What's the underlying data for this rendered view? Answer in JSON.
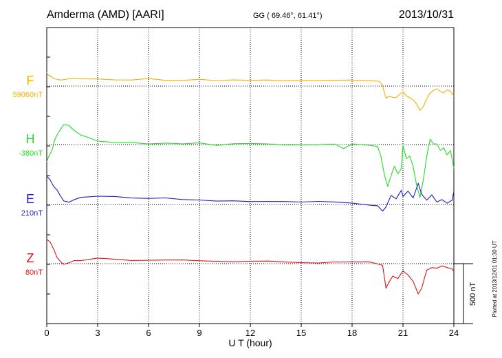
{
  "header": {
    "station": "Amderma (AMD)  [AARI]",
    "coords": "GG ( 69.46°,  61.41°)",
    "date": "2013/10/31"
  },
  "footer": {
    "plotted_note": "Plotted at 2013/12/01 01:30 UT"
  },
  "chart_data": {
    "type": "line",
    "xlabel": "U T (hour)",
    "xlim": [
      0,
      24
    ],
    "xticks": [
      "0",
      "3",
      "6",
      "9",
      "12",
      "15",
      "18",
      "21",
      "24"
    ],
    "grid": true,
    "scale_bar": {
      "label": "500 nT",
      "value": 500
    },
    "series": [
      {
        "name": "F",
        "baseline": "59060nT",
        "color": "#f5b000",
        "x": [
          0,
          0.1,
          0.2,
          0.4,
          0.6,
          0.8,
          1.0,
          1.5,
          2.0,
          3.0,
          4.0,
          5.0,
          6.0,
          7.0,
          8.0,
          9.0,
          10.0,
          11.0,
          12.0,
          13.0,
          14.0,
          15.0,
          16.0,
          17.0,
          18.0,
          19.0,
          19.6,
          19.8,
          19.9,
          20.0,
          20.2,
          20.4,
          20.6,
          20.8,
          21.0,
          21.2,
          21.4,
          21.6,
          21.8,
          22.0,
          22.2,
          22.4,
          22.6,
          22.8,
          23.0,
          23.2,
          23.4,
          23.6,
          23.8,
          24.0
        ],
        "y": [
          105,
          95,
          80,
          65,
          55,
          50,
          55,
          60,
          58,
          60,
          58,
          55,
          58,
          55,
          52,
          55,
          52,
          50,
          50,
          48,
          46,
          48,
          48,
          47,
          45,
          42,
          40,
          0,
          -60,
          -100,
          -80,
          -90,
          -100,
          -70,
          -50,
          -80,
          -90,
          -110,
          -150,
          -200,
          -170,
          -100,
          -60,
          -40,
          -20,
          -40,
          -60,
          -30,
          -50,
          -90
        ]
      },
      {
        "name": "H",
        "baseline": "-380nT",
        "color": "#22dd22",
        "x": [
          0,
          0.1,
          0.3,
          0.5,
          0.7,
          0.9,
          1.0,
          1.3,
          1.6,
          2.0,
          2.5,
          3.0,
          4.0,
          5.0,
          6.0,
          7.0,
          8.0,
          9.0,
          10.0,
          11.0,
          12.0,
          13.0,
          14.0,
          15.0,
          16.0,
          17.0,
          17.5,
          18.0,
          19.0,
          19.5,
          19.7,
          19.9,
          20.1,
          20.3,
          20.5,
          20.7,
          20.9,
          21.0,
          21.2,
          21.4,
          21.6,
          21.8,
          22.0,
          22.2,
          22.4,
          22.6,
          22.8,
          23.0,
          23.2,
          23.4,
          23.6,
          23.8,
          24.0
        ],
        "y": [
          -150,
          -100,
          -50,
          50,
          100,
          150,
          170,
          160,
          120,
          80,
          50,
          30,
          20,
          15,
          10,
          10,
          5,
          10,
          0,
          10,
          15,
          10,
          -10,
          0,
          5,
          0,
          -30,
          0,
          0,
          -20,
          -100,
          -250,
          -350,
          -260,
          -180,
          -250,
          -200,
          0,
          -120,
          -100,
          -180,
          -330,
          -440,
          -300,
          -100,
          50,
          10,
          0,
          -50,
          -20,
          -80,
          -50,
          -200
        ]
      },
      {
        "name": "E",
        "baseline": "210nT",
        "color": "#1a1acc",
        "x": [
          0,
          0.2,
          0.4,
          0.6,
          0.8,
          1.0,
          1.3,
          1.6,
          2.0,
          3.0,
          4.0,
          5.0,
          6.0,
          7.0,
          8.0,
          9.0,
          10.0,
          11.0,
          12.0,
          13.0,
          14.0,
          15.0,
          16.0,
          17.0,
          18.0,
          19.0,
          19.5,
          19.8,
          20.0,
          20.3,
          20.6,
          20.9,
          21.0,
          21.3,
          21.6,
          21.9,
          22.1,
          22.4,
          22.7,
          23.0,
          23.3,
          23.6,
          23.9,
          24.0
        ],
        "y": [
          230,
          200,
          150,
          120,
          80,
          30,
          20,
          40,
          60,
          70,
          65,
          60,
          55,
          50,
          45,
          40,
          35,
          30,
          30,
          25,
          25,
          20,
          20,
          15,
          10,
          0,
          -10,
          -60,
          -20,
          80,
          40,
          120,
          60,
          110,
          50,
          180,
          90,
          40,
          80,
          20,
          40,
          10,
          30,
          110
        ]
      },
      {
        "name": "Z",
        "baseline": "80nT",
        "color": "#dd1111",
        "x": [
          0,
          0.2,
          0.4,
          0.6,
          0.8,
          1.0,
          1.3,
          1.6,
          2.0,
          3.0,
          4.0,
          5.0,
          6.0,
          7.0,
          8.0,
          9.0,
          10.0,
          11.0,
          12.0,
          13.0,
          14.0,
          15.0,
          16.0,
          17.0,
          18.0,
          19.0,
          19.5,
          19.8,
          20.0,
          20.2,
          20.4,
          20.7,
          21.0,
          21.3,
          21.6,
          21.9,
          22.1,
          22.4,
          22.7,
          23.0,
          23.3,
          23.6,
          23.9,
          24.0
        ],
        "y": [
          200,
          180,
          120,
          60,
          20,
          0,
          10,
          20,
          30,
          40,
          35,
          30,
          30,
          25,
          25,
          20,
          20,
          15,
          15,
          15,
          10,
          10,
          10,
          10,
          10,
          10,
          5,
          -20,
          -200,
          -150,
          -100,
          -120,
          -60,
          -100,
          -150,
          -250,
          -200,
          -60,
          -30,
          -40,
          -20,
          -30,
          -50,
          -70
        ]
      }
    ]
  }
}
